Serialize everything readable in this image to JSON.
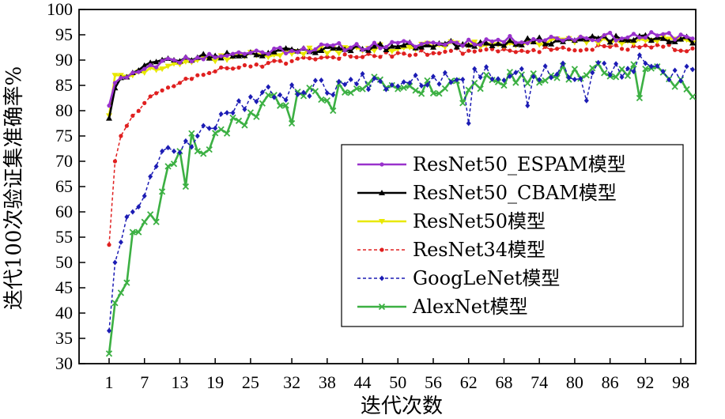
{
  "chart_data": {
    "type": "line",
    "title": "",
    "xlabel": "迭代次数",
    "ylabel": "迭代100次验证集准确率%",
    "xlim": [
      1,
      100
    ],
    "ylim": [
      30,
      100
    ],
    "x_ticks": [
      1,
      7,
      13,
      19,
      25,
      32,
      38,
      44,
      50,
      56,
      62,
      68,
      74,
      80,
      86,
      92,
      98
    ],
    "y_ticks": [
      30,
      35,
      40,
      45,
      50,
      55,
      60,
      65,
      70,
      75,
      80,
      85,
      90,
      95,
      100
    ],
    "legend_position": "right",
    "series": [
      {
        "name": "ResNet50_ESPAM模型",
        "color": "#9932cc",
        "style": "solid",
        "marker": "dot",
        "keypoints": [
          [
            1,
            81.0
          ],
          [
            2,
            85.5
          ],
          [
            3,
            86.5
          ],
          [
            5,
            87.5
          ],
          [
            8,
            89.0
          ],
          [
            12,
            90.0
          ],
          [
            16,
            90.5
          ],
          [
            20,
            91.0
          ],
          [
            25,
            91.5
          ],
          [
            30,
            92.0
          ],
          [
            35,
            92.3
          ],
          [
            40,
            92.6
          ],
          [
            45,
            92.8
          ],
          [
            50,
            93.0
          ],
          [
            55,
            93.3
          ],
          [
            60,
            93.5
          ],
          [
            65,
            93.8
          ],
          [
            70,
            94.0
          ],
          [
            75,
            94.2
          ],
          [
            80,
            94.4
          ],
          [
            85,
            94.6
          ],
          [
            90,
            94.7
          ],
          [
            95,
            94.8
          ],
          [
            100,
            94.8
          ]
        ],
        "amp": 0.8,
        "seed": 11
      },
      {
        "name": "ResNet50_CBAM模型",
        "color": "#000000",
        "style": "solid",
        "marker": "triangle",
        "keypoints": [
          [
            1,
            78.5
          ],
          [
            2,
            84.5
          ],
          [
            3,
            86.5
          ],
          [
            5,
            87.5
          ],
          [
            8,
            89.5
          ],
          [
            12,
            90.0
          ],
          [
            16,
            90.5
          ],
          [
            20,
            91.0
          ],
          [
            25,
            91.3
          ],
          [
            30,
            91.7
          ],
          [
            35,
            92.0
          ],
          [
            40,
            92.3
          ],
          [
            45,
            92.5
          ],
          [
            50,
            92.7
          ],
          [
            55,
            93.0
          ],
          [
            60,
            93.2
          ],
          [
            65,
            93.4
          ],
          [
            70,
            93.6
          ],
          [
            75,
            93.8
          ],
          [
            80,
            94.0
          ],
          [
            85,
            94.1
          ],
          [
            90,
            94.2
          ],
          [
            95,
            94.2
          ],
          [
            100,
            94.0
          ]
        ],
        "amp": 0.7,
        "seed": 23
      },
      {
        "name": "ResNet50模型",
        "color": "#e8e800",
        "style": "solid",
        "marker": "triangle-down",
        "keypoints": [
          [
            1,
            79.0
          ],
          [
            2,
            87.0
          ],
          [
            3,
            87.0
          ],
          [
            5,
            87.0
          ],
          [
            8,
            88.5
          ],
          [
            12,
            89.3
          ],
          [
            16,
            90.0
          ],
          [
            20,
            90.5
          ],
          [
            25,
            91.0
          ],
          [
            30,
            91.3
          ],
          [
            35,
            91.7
          ],
          [
            40,
            92.0
          ],
          [
            45,
            92.2
          ],
          [
            50,
            92.5
          ],
          [
            55,
            92.8
          ],
          [
            60,
            93.0
          ],
          [
            65,
            93.2
          ],
          [
            70,
            93.4
          ],
          [
            75,
            93.5
          ],
          [
            80,
            93.7
          ],
          [
            85,
            93.8
          ],
          [
            90,
            93.9
          ],
          [
            95,
            94.0
          ],
          [
            100,
            94.0
          ]
        ],
        "amp": 0.7,
        "seed": 37
      },
      {
        "name": "ResNet34模型",
        "color": "#e02020",
        "style": "dashed",
        "marker": "dot",
        "keypoints": [
          [
            1,
            53.5
          ],
          [
            2,
            70.0
          ],
          [
            3,
            75.0
          ],
          [
            4,
            77.0
          ],
          [
            5,
            79.0
          ],
          [
            7,
            81.5
          ],
          [
            10,
            84.0
          ],
          [
            13,
            85.5
          ],
          [
            16,
            87.0
          ],
          [
            20,
            88.0
          ],
          [
            25,
            89.0
          ],
          [
            30,
            89.5
          ],
          [
            35,
            90.0
          ],
          [
            40,
            90.5
          ],
          [
            45,
            91.0
          ],
          [
            50,
            91.3
          ],
          [
            55,
            91.5
          ],
          [
            60,
            91.8
          ],
          [
            65,
            92.0
          ],
          [
            70,
            92.0
          ],
          [
            75,
            92.2
          ],
          [
            80,
            92.3
          ],
          [
            85,
            92.4
          ],
          [
            90,
            92.5
          ],
          [
            95,
            92.5
          ],
          [
            100,
            92.2
          ]
        ],
        "amp": 0.6,
        "seed": 51
      },
      {
        "name": "GoogLeNet模型",
        "color": "#1c1cb4",
        "style": "dashed",
        "marker": "diamond",
        "keypoints": [
          [
            1,
            36.5
          ],
          [
            2,
            50.0
          ],
          [
            3,
            54.0
          ],
          [
            4,
            59.0
          ],
          [
            5,
            60.0
          ],
          [
            6,
            61.0
          ],
          [
            8,
            67.0
          ],
          [
            10,
            72.0
          ],
          [
            12,
            72.0
          ],
          [
            14,
            74.0
          ],
          [
            16,
            75.0
          ],
          [
            18,
            77.5
          ],
          [
            20,
            79.0
          ],
          [
            23,
            81.5
          ],
          [
            26,
            82.5
          ],
          [
            30,
            83.5
          ],
          [
            35,
            84.5
          ],
          [
            40,
            85.0
          ],
          [
            45,
            86.0
          ],
          [
            50,
            86.0
          ],
          [
            55,
            86.5
          ],
          [
            60,
            87.0
          ],
          [
            65,
            87.5
          ],
          [
            70,
            87.5
          ],
          [
            75,
            87.5
          ],
          [
            80,
            87.8
          ],
          [
            85,
            88.0
          ],
          [
            90,
            88.0
          ],
          [
            95,
            87.5
          ],
          [
            100,
            87.0
          ]
        ],
        "amp": 1.8,
        "seed": 67,
        "dips": [
          [
            62,
            77.5
          ],
          [
            72,
            81.0
          ],
          [
            82,
            82.0
          ],
          [
            91,
            91.0
          ]
        ]
      },
      {
        "name": "AlexNet模型",
        "color": "#3cb043",
        "style": "solid",
        "marker": "x",
        "keypoints": [
          [
            1,
            32.0
          ],
          [
            2,
            42.0
          ],
          [
            3,
            44.0
          ],
          [
            4,
            46.0
          ],
          [
            5,
            56.0
          ],
          [
            6,
            56.0
          ],
          [
            7,
            58.0
          ],
          [
            8,
            59.5
          ],
          [
            9,
            58.0
          ],
          [
            10,
            64.0
          ],
          [
            11,
            69.0
          ],
          [
            12,
            69.5
          ],
          [
            13,
            72.0
          ],
          [
            14,
            65.0
          ],
          [
            15,
            75.5
          ],
          [
            16,
            72.0
          ],
          [
            18,
            72.5
          ],
          [
            20,
            76.0
          ],
          [
            22,
            78.0
          ],
          [
            25,
            79.0
          ],
          [
            28,
            82.0
          ],
          [
            31,
            82.5
          ],
          [
            35,
            83.0
          ],
          [
            40,
            84.0
          ],
          [
            45,
            85.5
          ],
          [
            50,
            85.0
          ],
          [
            55,
            84.5
          ],
          [
            60,
            85.0
          ],
          [
            65,
            86.0
          ],
          [
            70,
            86.5
          ],
          [
            75,
            87.0
          ],
          [
            80,
            87.5
          ],
          [
            85,
            88.0
          ],
          [
            90,
            88.0
          ],
          [
            95,
            87.5
          ],
          [
            100,
            84.0
          ]
        ],
        "amp": 1.6,
        "seed": 79,
        "dips": [
          [
            32,
            77.5
          ],
          [
            39,
            80.0
          ],
          [
            61,
            81.5
          ],
          [
            91,
            82.5
          ]
        ]
      }
    ]
  }
}
